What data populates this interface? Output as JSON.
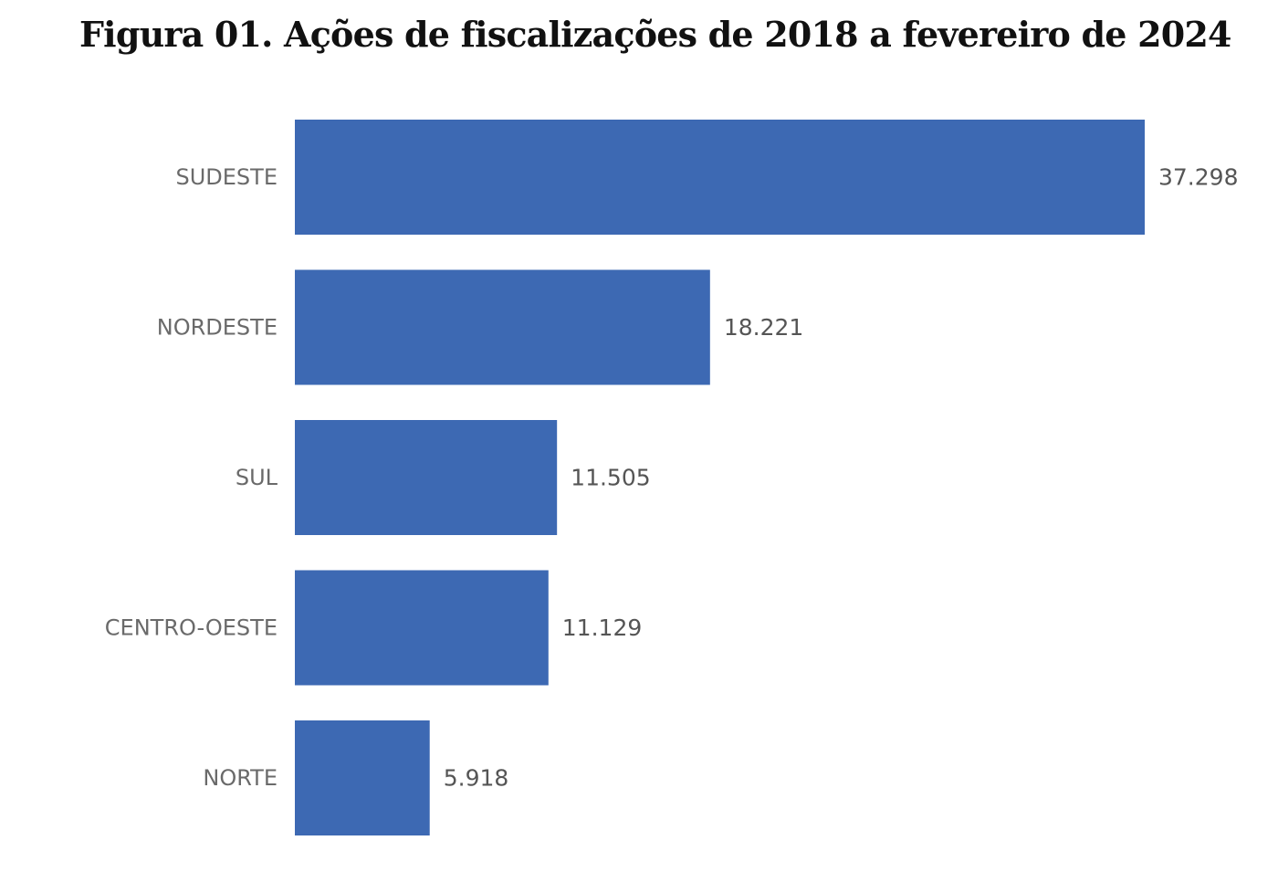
{
  "figure": {
    "title": "Figura 01. Ações de fiscalizações de 2018 a fevereiro de 2024"
  },
  "chart_data": {
    "type": "bar",
    "orientation": "horizontal",
    "title": "Figura 01. Ações de fiscalizações de 2018 a fevereiro de 2024",
    "categories": [
      "SUDESTE",
      "NORDESTE",
      "SUL",
      "CENTRO-OESTE",
      "NORTE"
    ],
    "values": [
      37298,
      18221,
      11505,
      11129,
      5918
    ],
    "value_labels": [
      "37.298",
      "18.221",
      "11.505",
      "11.129",
      "5.918"
    ],
    "xlim": [
      0,
      37298
    ],
    "grid": false,
    "legend": "none",
    "bar_color": "#3d69b3"
  }
}
